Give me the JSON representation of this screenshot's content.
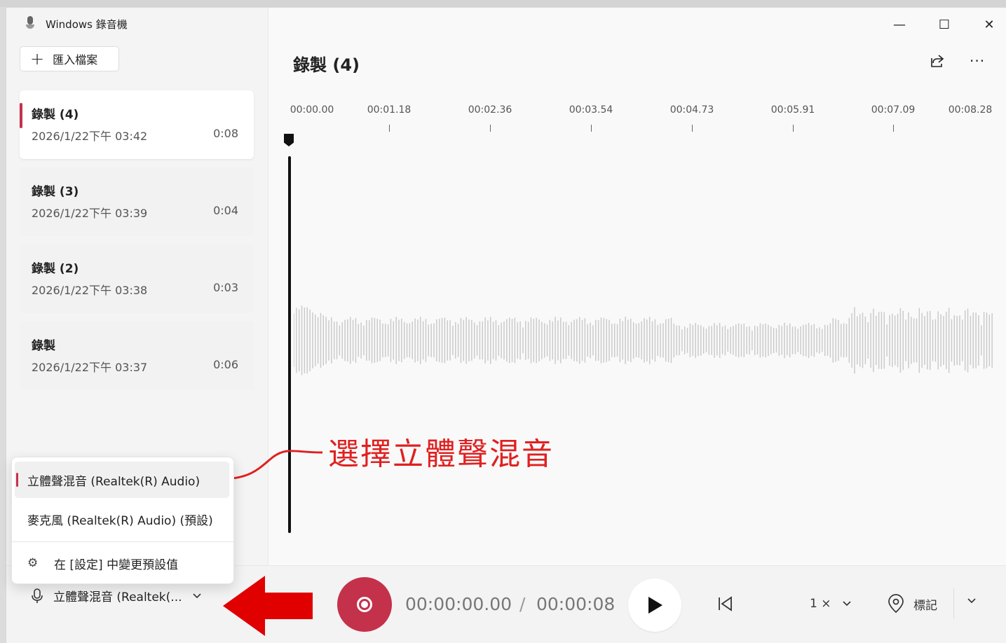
{
  "window": {
    "app_title": "Windows 錄音機",
    "minimize": "—",
    "maximize": "☐",
    "close": "✕"
  },
  "sidebar": {
    "import_label": "匯入檔案",
    "recordings": [
      {
        "name": "錄製 (4)",
        "date": "2026/1/22下午 03:42",
        "duration": "0:08",
        "selected": true
      },
      {
        "name": "錄製 (3)",
        "date": "2026/1/22下午 03:39",
        "duration": "0:04",
        "selected": false
      },
      {
        "name": "錄製 (2)",
        "date": "2026/1/22下午 03:38",
        "duration": "0:03",
        "selected": false
      },
      {
        "name": "錄製",
        "date": "2026/1/22下午 03:37",
        "duration": "0:06",
        "selected": false
      }
    ]
  },
  "main": {
    "title": "錄製 (4)",
    "timeline_ticks": [
      "00:00.00",
      "00:01.18",
      "00:02.36",
      "00:03.54",
      "00:04.73",
      "00:05.91",
      "00:07.09",
      "00:08.28"
    ],
    "more_label": "···"
  },
  "annotation": {
    "text": "選擇立體聲混音",
    "color": "#e02020"
  },
  "input_menu": {
    "options": [
      "立體聲混音 (Realtek(R) Audio)",
      "麥克風 (Realtek(R) Audio) (預設)"
    ],
    "selected_index": 0,
    "settings_label": "在 [設定] 中變更預設值"
  },
  "bottom": {
    "input_device": "立體聲混音 (Realtek(...",
    "current_time": "00:00:00.00",
    "separator": "/",
    "total_time": "00:00:08",
    "speed": "1 ×",
    "marker_label": "標記"
  },
  "colors": {
    "accent": "#c4314b",
    "annotation_red": "#e02020"
  }
}
